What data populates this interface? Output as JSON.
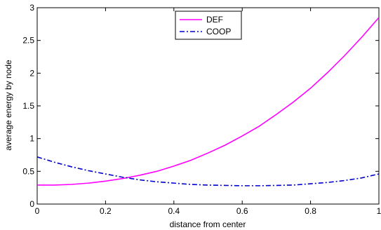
{
  "chart_data": {
    "type": "line",
    "title": "",
    "xlabel": "distance from center",
    "ylabel": "average energy by node",
    "xlim": [
      0,
      1
    ],
    "ylim": [
      0,
      3
    ],
    "xticks": [
      0,
      0.2,
      0.4,
      0.6,
      0.8,
      1
    ],
    "xtick_labels": [
      "0",
      "0.2",
      "0.4",
      "0.6",
      "0.8",
      "1"
    ],
    "yticks": [
      0,
      0.5,
      1,
      1.5,
      2,
      2.5,
      3
    ],
    "ytick_labels": [
      "0",
      "0.5",
      "1",
      "1.5",
      "2",
      "2.5",
      "3"
    ],
    "grid": false,
    "legend_position": "top-center",
    "x": [
      0,
      0.05,
      0.1,
      0.15,
      0.2,
      0.25,
      0.3,
      0.35,
      0.4,
      0.45,
      0.5,
      0.55,
      0.6,
      0.65,
      0.7,
      0.75,
      0.8,
      0.85,
      0.9,
      0.95,
      1
    ],
    "series": [
      {
        "name": "DEF",
        "color": "#ff00ff",
        "line_style": "solid",
        "values": [
          0.29,
          0.29,
          0.3,
          0.32,
          0.35,
          0.39,
          0.44,
          0.5,
          0.58,
          0.67,
          0.78,
          0.9,
          1.04,
          1.19,
          1.37,
          1.56,
          1.77,
          2.01,
          2.27,
          2.55,
          2.85
        ]
      },
      {
        "name": "COOP",
        "color": "#0000cc",
        "line_style": "dash-dot",
        "values": [
          0.72,
          0.64,
          0.57,
          0.51,
          0.46,
          0.41,
          0.37,
          0.34,
          0.32,
          0.3,
          0.29,
          0.285,
          0.28,
          0.28,
          0.285,
          0.29,
          0.31,
          0.33,
          0.36,
          0.4,
          0.46
        ]
      }
    ]
  }
}
